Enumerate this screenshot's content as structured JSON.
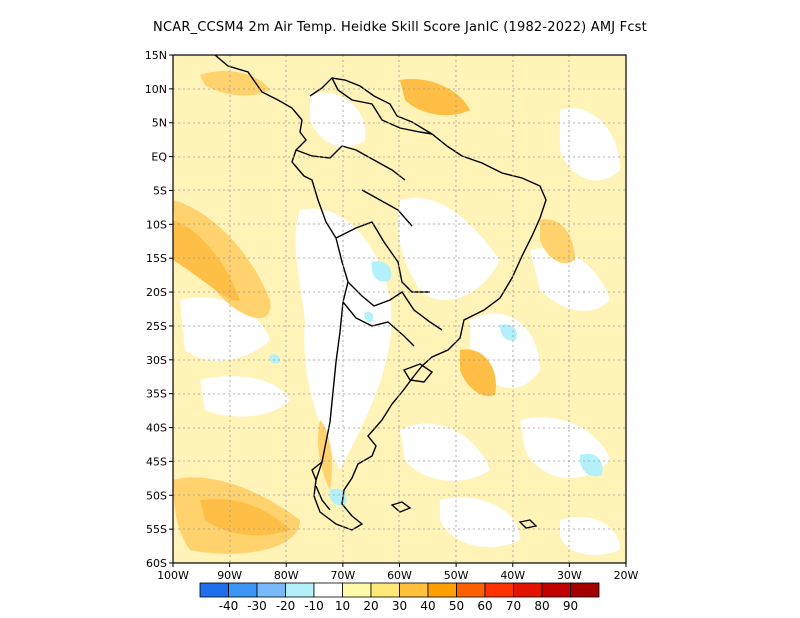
{
  "title": "NCAR_CCSM4  2m Air Temp. Heidke Skill Score JanIC (1982-2022) AMJ Fcst",
  "map": {
    "lat_labels": [
      "15N",
      "10N",
      "5N",
      "EQ",
      "5S",
      "10S",
      "15S",
      "20S",
      "25S",
      "30S",
      "35S",
      "40S",
      "45S",
      "50S",
      "55S",
      "60S"
    ],
    "lon_labels": [
      "100W",
      "90W",
      "80W",
      "70W",
      "60W",
      "50W",
      "40W",
      "30W",
      "20W"
    ],
    "lat_range": [
      -60,
      15
    ],
    "lon_range": [
      -100,
      -20
    ],
    "grid": "dotted",
    "field": "heidke skill score, mostly positive (10-40) over oceans and tropics, weakly negative patches over interior South America"
  },
  "colorbar": {
    "labels": [
      "-40",
      "-30",
      "-20",
      "-10",
      "10",
      "20",
      "30",
      "40",
      "50",
      "60",
      "70",
      "80",
      "90"
    ],
    "colors": [
      "#1e6eeb",
      "#3c96f5",
      "#78b9fa",
      "#b4f0fa",
      "#ffffff",
      "#fffaaa",
      "#ffe878",
      "#ffc03c",
      "#ffa000",
      "#ff6000",
      "#ff3200",
      "#e11400",
      "#c00000",
      "#a50000"
    ]
  }
}
